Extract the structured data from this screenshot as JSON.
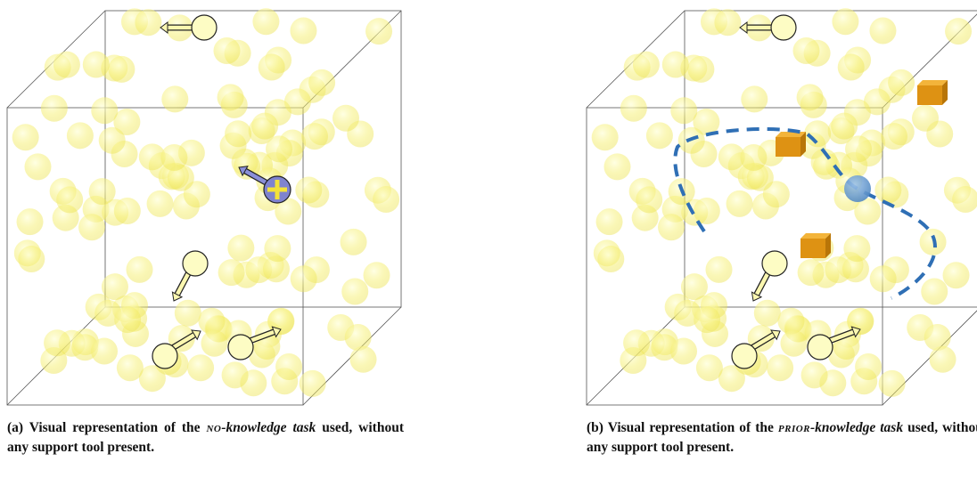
{
  "figure": {
    "subfigures": [
      {
        "label": "(a)",
        "parts": [
          "Visual representation of the ",
          "no",
          "-knowledge task",
          " used, without any support tool present."
        ]
      },
      {
        "label": "(b)",
        "parts": [
          "Visual representation of the ",
          "prior",
          "-knowledge task",
          " used, without any support tool present."
        ]
      }
    ]
  }
}
